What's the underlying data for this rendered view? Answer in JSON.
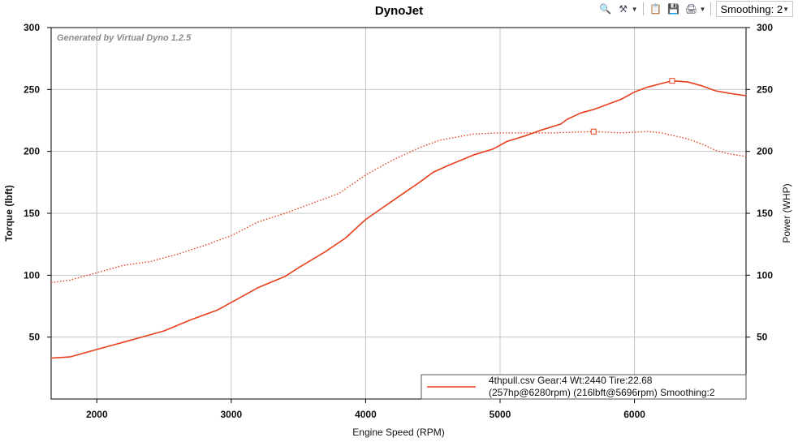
{
  "window": {
    "title": "DynoJet"
  },
  "toolbar": {
    "icons": [
      "zoom-icon",
      "tools-icon",
      "paste-icon",
      "save-icon",
      "print-icon"
    ],
    "smoothing_label": "Smoothing: 2"
  },
  "chart_data": {
    "type": "line",
    "title": "DynoJet",
    "watermark": "Generated by Virtual Dyno 1.2.5",
    "xlabel": "Engine Speed (RPM)",
    "ylabel_left": "Torque (lbft)",
    "ylabel_right": "Power (WHP)",
    "xlim": [
      1660,
      6830
    ],
    "ylim_left": [
      0,
      300
    ],
    "ylim_right": [
      0,
      300
    ],
    "x_ticks": [
      "2000",
      "3000",
      "4000",
      "5000",
      "6000"
    ],
    "x_tick_values": [
      2000,
      3000,
      4000,
      5000,
      6000
    ],
    "y_ticks": [
      "50",
      "100",
      "150",
      "200",
      "250",
      "300"
    ],
    "y_tick_values": [
      50,
      100,
      150,
      200,
      250,
      300
    ],
    "grid": true,
    "line_color": "#e8401c",
    "series": [
      {
        "style": "solid",
        "x": [
          1660,
          1800,
          2000,
          2200,
          2400,
          2500,
          2700,
          2900,
          3100,
          3200,
          3400,
          3500,
          3700,
          3850,
          4000,
          4200,
          4400,
          4500,
          4600,
          4800,
          4950,
          5050,
          5200,
          5300,
          5450,
          5500,
          5600,
          5700,
          5900,
          6000,
          6100,
          6280,
          6400,
          6500,
          6600,
          6700,
          6830
        ],
        "values": [
          33,
          34,
          40,
          46,
          52,
          55,
          64,
          72,
          84,
          90,
          99,
          106,
          119,
          130,
          145,
          160,
          175,
          183,
          188,
          197,
          202,
          208,
          213,
          217,
          222,
          226,
          231,
          234,
          242,
          248,
          252,
          257,
          256,
          253,
          249,
          247,
          245
        ]
      },
      {
        "style": "dotted",
        "x": [
          1660,
          1800,
          2000,
          2200,
          2400,
          2600,
          2800,
          3000,
          3200,
          3400,
          3600,
          3800,
          4000,
          4200,
          4400,
          4550,
          4800,
          5000,
          5200,
          5400,
          5696,
          5900,
          6100,
          6200,
          6400,
          6500,
          6600,
          6700,
          6830
        ],
        "values": [
          94,
          96,
          102,
          108,
          111,
          117,
          124,
          132,
          143,
          150,
          158,
          166,
          181,
          193,
          203,
          209,
          214,
          215,
          215,
          215,
          216,
          215,
          216,
          215,
          210,
          206,
          201,
          198,
          196
        ]
      }
    ],
    "markers": [
      {
        "x": 6280,
        "y": 257
      },
      {
        "x": 5696,
        "y": 216
      }
    ],
    "legend": {
      "line1": "4thpull.csv Gear:4 Wt:2440 Tire:22.68",
      "line2": "(257hp@6280rpm) (216lbft@5696rpm) Smoothing:2",
      "placement": "bottom-right"
    }
  }
}
